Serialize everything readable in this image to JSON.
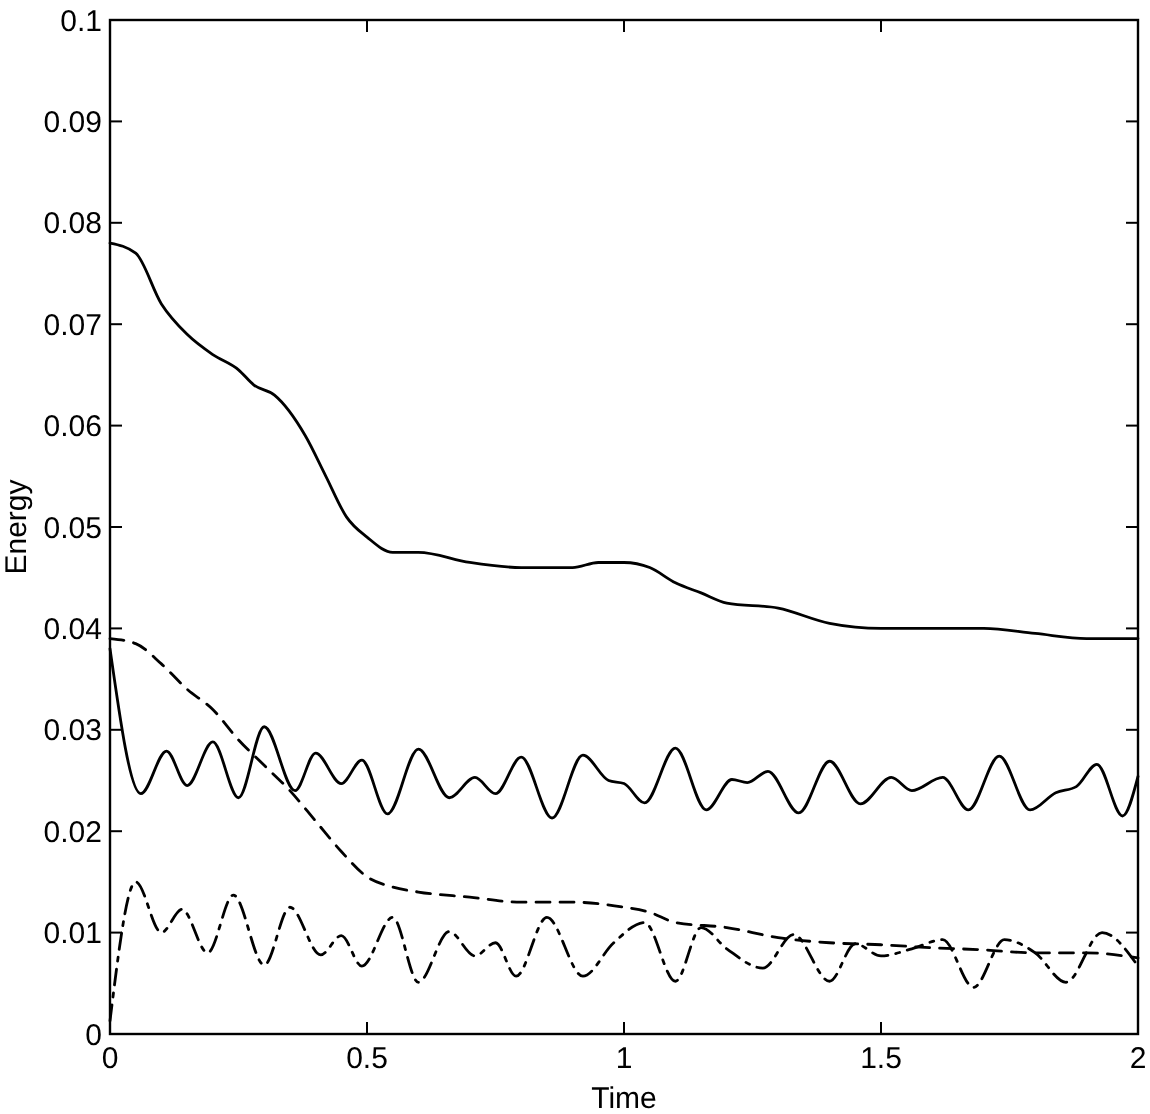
{
  "chart_data": {
    "type": "line",
    "xlabel": "Time",
    "ylabel": "Energy",
    "xlim": [
      0,
      2
    ],
    "ylim": [
      0,
      0.1
    ],
    "xticks": [
      0,
      0.5,
      1,
      1.5,
      2
    ],
    "yticks": [
      0,
      0.01,
      0.02,
      0.03,
      0.04,
      0.05,
      0.06,
      0.07,
      0.08,
      0.09,
      0.1
    ],
    "grid": false,
    "marker": "none",
    "series": [
      {
        "color": "#000000",
        "line_style": "solid",
        "x": [
          0,
          0.05,
          0.1,
          0.15,
          0.2,
          0.25,
          0.28,
          0.32,
          0.38,
          0.42,
          0.46,
          0.5,
          0.55,
          0.6,
          0.7,
          0.8,
          0.9,
          0.95,
          1.0,
          1.05,
          1.1,
          1.15,
          1.2,
          1.3,
          1.4,
          1.5,
          1.6,
          1.7,
          1.8,
          1.9,
          2.0
        ],
        "values": [
          0.078,
          0.077,
          0.072,
          0.069,
          0.067,
          0.0655,
          0.064,
          0.063,
          0.059,
          0.055,
          0.051,
          0.049,
          0.0475,
          0.0475,
          0.0465,
          0.046,
          0.046,
          0.0465,
          0.0465,
          0.046,
          0.0445,
          0.0435,
          0.0425,
          0.042,
          0.0405,
          0.04,
          0.04,
          0.04,
          0.0395,
          0.039,
          0.039
        ]
      },
      {
        "color": "#000000",
        "line_style": "dashed",
        "x": [
          0,
          0.05,
          0.1,
          0.15,
          0.2,
          0.25,
          0.3,
          0.35,
          0.4,
          0.45,
          0.5,
          0.55,
          0.6,
          0.7,
          0.8,
          0.9,
          1.0,
          1.05,
          1.1,
          1.2,
          1.3,
          1.4,
          1.5,
          1.6,
          1.7,
          1.8,
          1.9,
          2.0
        ],
        "values": [
          0.039,
          0.0385,
          0.0365,
          0.034,
          0.032,
          0.029,
          0.0265,
          0.024,
          0.021,
          0.018,
          0.0155,
          0.0145,
          0.014,
          0.0135,
          0.013,
          0.013,
          0.0125,
          0.012,
          0.011,
          0.0105,
          0.0095,
          0.009,
          0.0088,
          0.0085,
          0.0083,
          0.008,
          0.008,
          0.0075
        ]
      },
      {
        "color": "#000000",
        "line_style": "solid",
        "x": [
          0,
          0.06,
          0.11,
          0.15,
          0.2,
          0.25,
          0.3,
          0.36,
          0.4,
          0.45,
          0.49,
          0.54,
          0.6,
          0.66,
          0.71,
          0.75,
          0.8,
          0.86,
          0.92,
          0.97,
          1.0,
          1.04,
          1.1,
          1.16,
          1.21,
          1.24,
          1.28,
          1.34,
          1.4,
          1.46,
          1.52,
          1.56,
          1.62,
          1.67,
          1.73,
          1.79,
          1.84,
          1.88,
          1.92,
          1.97,
          2.0
        ],
        "values": [
          0.038,
          0.0237,
          0.0279,
          0.0245,
          0.0288,
          0.0233,
          0.0303,
          0.024,
          0.0277,
          0.0247,
          0.027,
          0.0217,
          0.0281,
          0.0233,
          0.0253,
          0.0237,
          0.0273,
          0.0213,
          0.0275,
          0.025,
          0.0247,
          0.0228,
          0.0282,
          0.0221,
          0.0251,
          0.0248,
          0.0259,
          0.0218,
          0.0269,
          0.0227,
          0.0253,
          0.024,
          0.0253,
          0.0221,
          0.0274,
          0.0221,
          0.0238,
          0.0244,
          0.0266,
          0.0215,
          0.0254
        ]
      },
      {
        "color": "#000000",
        "line_style": "dashdot",
        "x": [
          0,
          0.05,
          0.1,
          0.14,
          0.19,
          0.24,
          0.3,
          0.35,
          0.41,
          0.45,
          0.49,
          0.55,
          0.6,
          0.66,
          0.71,
          0.75,
          0.79,
          0.85,
          0.92,
          0.98,
          1.04,
          1.1,
          1.15,
          1.2,
          1.27,
          1.33,
          1.4,
          1.45,
          1.5,
          1.56,
          1.62,
          1.68,
          1.74,
          1.8,
          1.86,
          1.93,
          2.0
        ],
        "values": [
          0.0013,
          0.015,
          0.01,
          0.0123,
          0.008,
          0.0137,
          0.0068,
          0.0125,
          0.0078,
          0.0097,
          0.0067,
          0.0115,
          0.0051,
          0.0101,
          0.0077,
          0.009,
          0.0057,
          0.0115,
          0.0057,
          0.009,
          0.011,
          0.0052,
          0.0105,
          0.0084,
          0.0065,
          0.0098,
          0.0052,
          0.0089,
          0.0077,
          0.0084,
          0.0093,
          0.0046,
          0.0093,
          0.008,
          0.0051,
          0.01,
          0.0067
        ]
      }
    ]
  }
}
